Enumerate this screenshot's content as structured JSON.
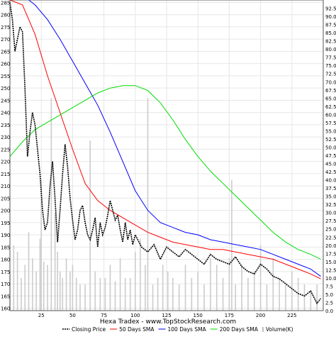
{
  "chart_data": {
    "type": "line",
    "title": "Hexa Tradex - www.TopStockResearch.com",
    "xlim": [
      0,
      250
    ],
    "ylim_left": [
      159,
      286
    ],
    "ylim_right": [
      0,
      95
    ],
    "grid": true,
    "legend_position": "bottom",
    "x_ticks": [
      25,
      50,
      75,
      100,
      125,
      150,
      175,
      200,
      225
    ],
    "y_ticks_left": [
      160,
      165,
      170,
      175,
      180,
      185,
      190,
      195,
      200,
      205,
      210,
      215,
      220,
      225,
      230,
      235,
      240,
      245,
      250,
      255,
      260,
      265,
      270,
      275,
      280,
      285
    ],
    "y_ticks_right": [
      "0.0",
      "2.5",
      "5.0",
      "7.5",
      "10.0",
      "12.5",
      "15.0",
      "17.5",
      "20.0",
      "22.5",
      "25.0",
      "27.5",
      "30.0",
      "32.5",
      "35.0",
      "37.5",
      "40.0",
      "42.5",
      "45.0",
      "47.5",
      "50.0",
      "52.5",
      "55.0",
      "57.5",
      "60.0",
      "62.5",
      "65.0",
      "67.5",
      "70.0",
      "72.5",
      "75.0",
      "77.5",
      "80.0",
      "82.5",
      "85.0",
      "87.5",
      "90.0",
      "92.5"
    ],
    "series": [
      {
        "name": "Closing Price",
        "axis": "left",
        "color": "#000000",
        "style": "dotted",
        "x": [
          0,
          2,
          4,
          6,
          8,
          10,
          12,
          14,
          16,
          18,
          20,
          22,
          24,
          26,
          28,
          30,
          32,
          34,
          36,
          38,
          40,
          42,
          44,
          46,
          48,
          50,
          52,
          54,
          56,
          58,
          60,
          62,
          64,
          66,
          68,
          70,
          72,
          74,
          76,
          78,
          80,
          82,
          84,
          86,
          88,
          90,
          92,
          94,
          96,
          98,
          100,
          105,
          110,
          115,
          120,
          125,
          130,
          135,
          140,
          145,
          150,
          155,
          160,
          165,
          170,
          175,
          180,
          185,
          190,
          195,
          200,
          205,
          210,
          215,
          220,
          225,
          230,
          235,
          240,
          245,
          248
        ],
        "y": [
          285,
          278,
          265,
          270,
          275,
          273,
          250,
          222,
          232,
          240,
          235,
          225,
          215,
          200,
          192,
          195,
          210,
          220,
          205,
          187,
          200,
          215,
          227,
          218,
          205,
          196,
          188,
          192,
          200,
          202,
          195,
          190,
          188,
          192,
          197,
          185,
          195,
          190,
          193,
          198,
          204,
          200,
          196,
          198,
          192,
          187,
          195,
          188,
          192,
          186,
          190,
          185,
          183,
          186,
          180,
          185,
          183,
          181,
          184,
          182,
          180,
          178,
          182,
          180,
          179,
          178,
          181,
          177,
          175,
          174,
          178,
          176,
          173,
          172,
          170,
          168,
          166,
          165,
          167,
          162,
          164
        ]
      },
      {
        "name": "50 Days SMA",
        "axis": "left",
        "color": "#ff0000",
        "style": "solid",
        "x": [
          0,
          10,
          20,
          30,
          40,
          50,
          60,
          70,
          80,
          90,
          100,
          110,
          120,
          130,
          140,
          150,
          160,
          170,
          180,
          190,
          200,
          210,
          220,
          230,
          240,
          248
        ],
        "y": [
          286,
          284,
          272,
          255,
          240,
          225,
          211,
          204,
          200,
          197,
          194,
          191,
          189,
          187,
          186,
          185,
          184,
          184,
          183,
          182,
          181,
          180,
          178,
          176,
          174,
          172
        ]
      },
      {
        "name": "100 Days SMA",
        "axis": "left",
        "color": "#0000ff",
        "style": "solid",
        "x": [
          15,
          20,
          30,
          40,
          50,
          60,
          70,
          80,
          90,
          100,
          110,
          120,
          130,
          140,
          150,
          160,
          170,
          180,
          190,
          200,
          210,
          220,
          230,
          240,
          248
        ],
        "y": [
          286,
          284,
          278,
          270,
          261,
          252,
          243,
          232,
          220,
          208,
          200,
          195,
          193,
          191,
          190,
          188,
          187,
          186,
          185,
          184,
          182,
          180,
          178,
          176,
          173
        ]
      },
      {
        "name": "200 Days SMA",
        "axis": "left",
        "color": "#00dd00",
        "style": "solid",
        "x": [
          0,
          10,
          20,
          30,
          40,
          50,
          60,
          70,
          80,
          90,
          100,
          110,
          120,
          130,
          140,
          150,
          160,
          170,
          180,
          190,
          200,
          210,
          220,
          230,
          240,
          248
        ],
        "y": [
          222,
          228,
          233,
          236,
          239,
          242,
          245,
          248,
          250,
          251,
          251,
          249,
          244,
          237,
          229,
          222,
          216,
          211,
          206,
          201,
          196,
          191,
          187,
          184,
          182,
          180
        ]
      },
      {
        "name": "Volume(K)",
        "axis": "right",
        "color": "#cccccc",
        "style": "bar",
        "x": [
          0,
          3,
          6,
          9,
          12,
          15,
          18,
          21,
          24,
          25,
          27,
          30,
          33,
          36,
          38,
          40,
          42,
          45,
          48,
          50,
          53,
          56,
          60,
          64,
          68,
          72,
          76,
          80,
          84,
          88,
          92,
          96,
          100,
          104,
          108,
          110,
          114,
          118,
          122,
          126,
          130,
          135,
          140,
          145,
          150,
          155,
          160,
          165,
          170,
          175,
          177,
          180,
          185,
          190,
          195,
          200,
          205,
          210,
          215,
          220,
          225,
          230,
          235,
          240,
          245
        ],
        "values": [
          12,
          20,
          18,
          10,
          14,
          24,
          16,
          12,
          22,
          40,
          15,
          14,
          65,
          30,
          18,
          12,
          10,
          16,
          12,
          14,
          10,
          8,
          8,
          52,
          12,
          10,
          10,
          14,
          9,
          16,
          10,
          10,
          18,
          22,
          14,
          65,
          8,
          10,
          14,
          12,
          10,
          8,
          14,
          10,
          12,
          8,
          16,
          14,
          10,
          16,
          40,
          8,
          14,
          10,
          12,
          20,
          8,
          16,
          10,
          8,
          12,
          10,
          8,
          6,
          8
        ]
      }
    ]
  }
}
